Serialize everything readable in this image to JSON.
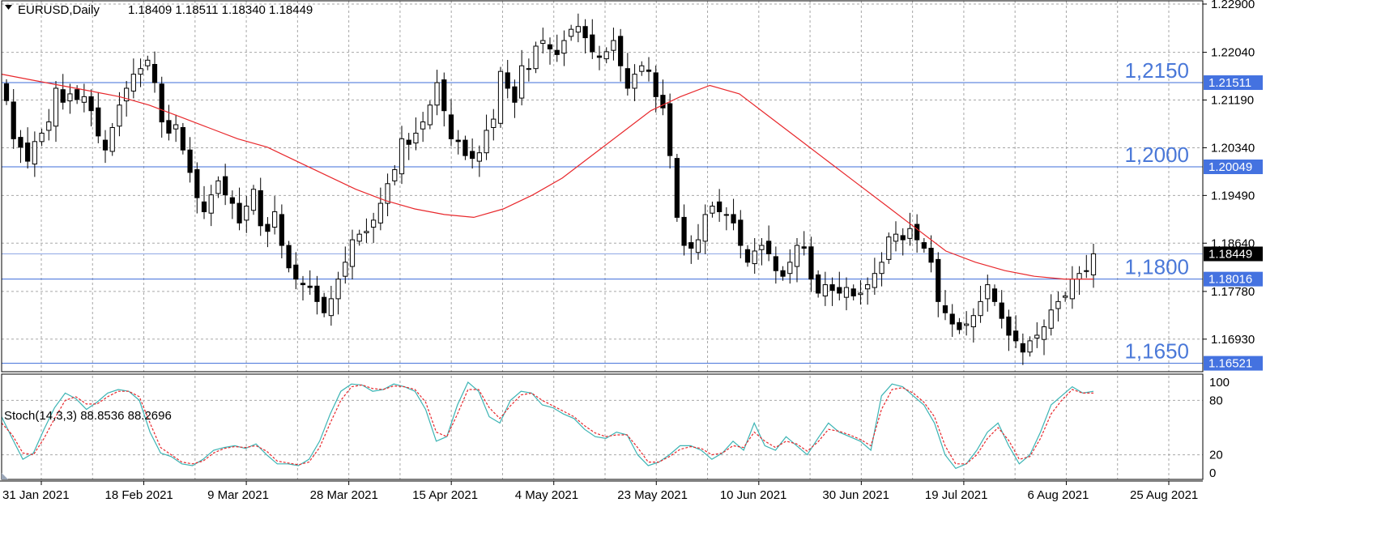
{
  "header": {
    "symbol": "EURUSD,Daily",
    "ohlc": "1.18409 1.18511 1.18340 1.18449"
  },
  "indicator": {
    "label": "Stoch(14,3,3) 88.8536 88.2696"
  },
  "colors": {
    "bull_body": "#ffffff",
    "bear_body": "#000000",
    "ma_line": "#e8282c",
    "level_line": "#3d6dd9",
    "level_text": "#4a78d8",
    "stoch_main": "#3cb4b4",
    "stoch_signal": "#e8282c",
    "grid": "#a7a7a7"
  },
  "chart_data": [
    {
      "type": "candlestick",
      "symbol": "EURUSD",
      "timeframe": "Daily",
      "ylim": [
        1.1635,
        1.229
      ],
      "y_ticks": [
        "1.22900",
        "1.22040",
        "1.21190",
        "1.20340",
        "1.19490",
        "1.18640",
        "1.17780",
        "1.16930"
      ],
      "x_ticks": [
        "31 Jan 2021",
        "18 Feb 2021",
        "9 Mar 2021",
        "28 Mar 2021",
        "15 Apr 2021",
        "4 May 2021",
        "23 May 2021",
        "10 Jun 2021",
        "30 Jun 2021",
        "19 Jul 2021",
        "6 Aug 2021",
        "25 Aug 2021"
      ],
      "closes": [
        1.2118,
        1.205,
        1.2035,
        1.201,
        1.2045,
        1.206,
        1.208,
        1.214,
        1.2115,
        1.213,
        1.212,
        1.2125,
        1.21,
        1.2055,
        1.203,
        1.207,
        1.211,
        1.214,
        1.2165,
        1.2175,
        1.219,
        1.215,
        1.208,
        1.206,
        1.2075,
        1.203,
        1.199,
        1.1945,
        1.192,
        1.195,
        1.1975,
        1.195,
        1.1935,
        1.19,
        1.193,
        1.196,
        1.1895,
        1.1885,
        1.192,
        1.186,
        1.182,
        1.18,
        1.179,
        1.1785,
        1.176,
        1.174,
        1.1765,
        1.18,
        1.183,
        1.187,
        1.188,
        1.1885,
        1.1905,
        1.1935,
        1.197,
        1.1995,
        1.205,
        1.204,
        1.206,
        1.208,
        1.211,
        1.215,
        1.21,
        1.205,
        1.2045,
        1.202,
        1.2015,
        1.2025,
        1.2065,
        1.2085,
        1.217,
        1.214,
        1.2115,
        1.218,
        1.2175,
        1.2215,
        1.2225,
        1.221,
        1.22,
        1.2225,
        1.2245,
        1.225,
        1.223,
        1.2205,
        1.2195,
        1.2205,
        1.2225,
        1.218,
        1.214,
        1.2165,
        1.218,
        1.217,
        1.2125,
        1.2105,
        1.202,
        1.191,
        1.186,
        1.1855,
        1.187,
        1.1915,
        1.193,
        1.192,
        1.1915,
        1.19,
        1.186,
        1.183,
        1.185,
        1.186,
        1.1845,
        1.1815,
        1.1805,
        1.183,
        1.186,
        1.1855,
        1.18,
        1.1775,
        1.179,
        1.178,
        1.1775,
        1.1785,
        1.177,
        1.1775,
        1.179,
        1.181,
        1.183,
        1.1875,
        1.188,
        1.187,
        1.189,
        1.187,
        1.1855,
        1.183,
        1.176,
        1.174,
        1.172,
        1.171,
        1.172,
        1.1735,
        1.176,
        1.179,
        1.176,
        1.173,
        1.17,
        1.169,
        1.167,
        1.169,
        1.17,
        1.1715,
        1.1745,
        1.176,
        1.177,
        1.18,
        1.181,
        1.1815,
        1.1845
      ],
      "moving_average": {
        "color": "#e8282c",
        "values": [
          1.2165,
          1.2155,
          1.2145,
          1.2135,
          1.2125,
          1.211,
          1.209,
          1.207,
          1.205,
          1.2035,
          1.201,
          1.1985,
          1.196,
          1.194,
          1.1925,
          1.1915,
          1.191,
          1.1925,
          1.195,
          1.198,
          1.202,
          1.206,
          1.21,
          1.2125,
          1.2145,
          1.213,
          1.209,
          1.205,
          1.201,
          1.197,
          1.193,
          1.189,
          1.185,
          1.183,
          1.1815,
          1.1805,
          1.18,
          1.18
        ]
      },
      "levels": [
        {
          "label": "1,2150",
          "price": 1.215,
          "tag": "1.21511"
        },
        {
          "label": "1,2000",
          "price": 1.2,
          "tag": "1.20049"
        },
        {
          "label": "1,1800",
          "price": 1.18,
          "tag": "1.18016"
        },
        {
          "label": "1,1650",
          "price": 1.165,
          "tag": "1.16521"
        }
      ],
      "current_price": {
        "price": 1.18449,
        "tag": "1.18449"
      }
    },
    {
      "type": "line",
      "name": "Stoch(14,3,3)",
      "ylim": [
        0,
        100
      ],
      "y_ticks": [
        "100",
        "80",
        "20",
        "0"
      ],
      "series": [
        {
          "role": "main",
          "values": [
            62,
            38,
            15,
            22,
            48,
            72,
            88,
            82,
            70,
            78,
            88,
            92,
            90,
            80,
            45,
            22,
            18,
            10,
            8,
            15,
            25,
            28,
            30,
            27,
            32,
            20,
            10,
            10,
            8,
            15,
            35,
            65,
            90,
            98,
            97,
            90,
            92,
            98,
            95,
            90,
            70,
            35,
            40,
            75,
            100,
            90,
            62,
            55,
            80,
            90,
            88,
            75,
            72,
            65,
            60,
            48,
            40,
            38,
            45,
            42,
            20,
            8,
            12,
            20,
            30,
            30,
            25,
            15,
            22,
            35,
            25,
            55,
            30,
            25,
            40,
            30,
            20,
            38,
            55,
            45,
            40,
            35,
            25,
            85,
            98,
            95,
            85,
            75,
            55,
            20,
            5,
            10,
            25,
            45,
            55,
            30,
            10,
            20,
            45,
            75,
            85,
            95,
            88,
            90
          ]
        },
        {
          "role": "signal",
          "values": [
            55,
            42,
            22,
            20,
            38,
            60,
            80,
            84,
            76,
            76,
            84,
            90,
            90,
            84,
            55,
            28,
            20,
            12,
            10,
            13,
            22,
            27,
            29,
            28,
            30,
            24,
            13,
            11,
            9,
            12,
            28,
            55,
            80,
            95,
            97,
            93,
            92,
            96,
            95,
            92,
            78,
            45,
            40,
            65,
            92,
            92,
            72,
            60,
            74,
            86,
            88,
            80,
            74,
            68,
            62,
            52,
            44,
            40,
            42,
            42,
            28,
            12,
            12,
            18,
            26,
            29,
            27,
            20,
            22,
            30,
            28,
            45,
            35,
            28,
            35,
            32,
            24,
            34,
            48,
            46,
            42,
            37,
            30,
            70,
            92,
            94,
            88,
            78,
            62,
            30,
            10,
            10,
            20,
            38,
            50,
            36,
            15,
            18,
            38,
            65,
            80,
            92,
            88,
            88
          ]
        }
      ]
    }
  ]
}
